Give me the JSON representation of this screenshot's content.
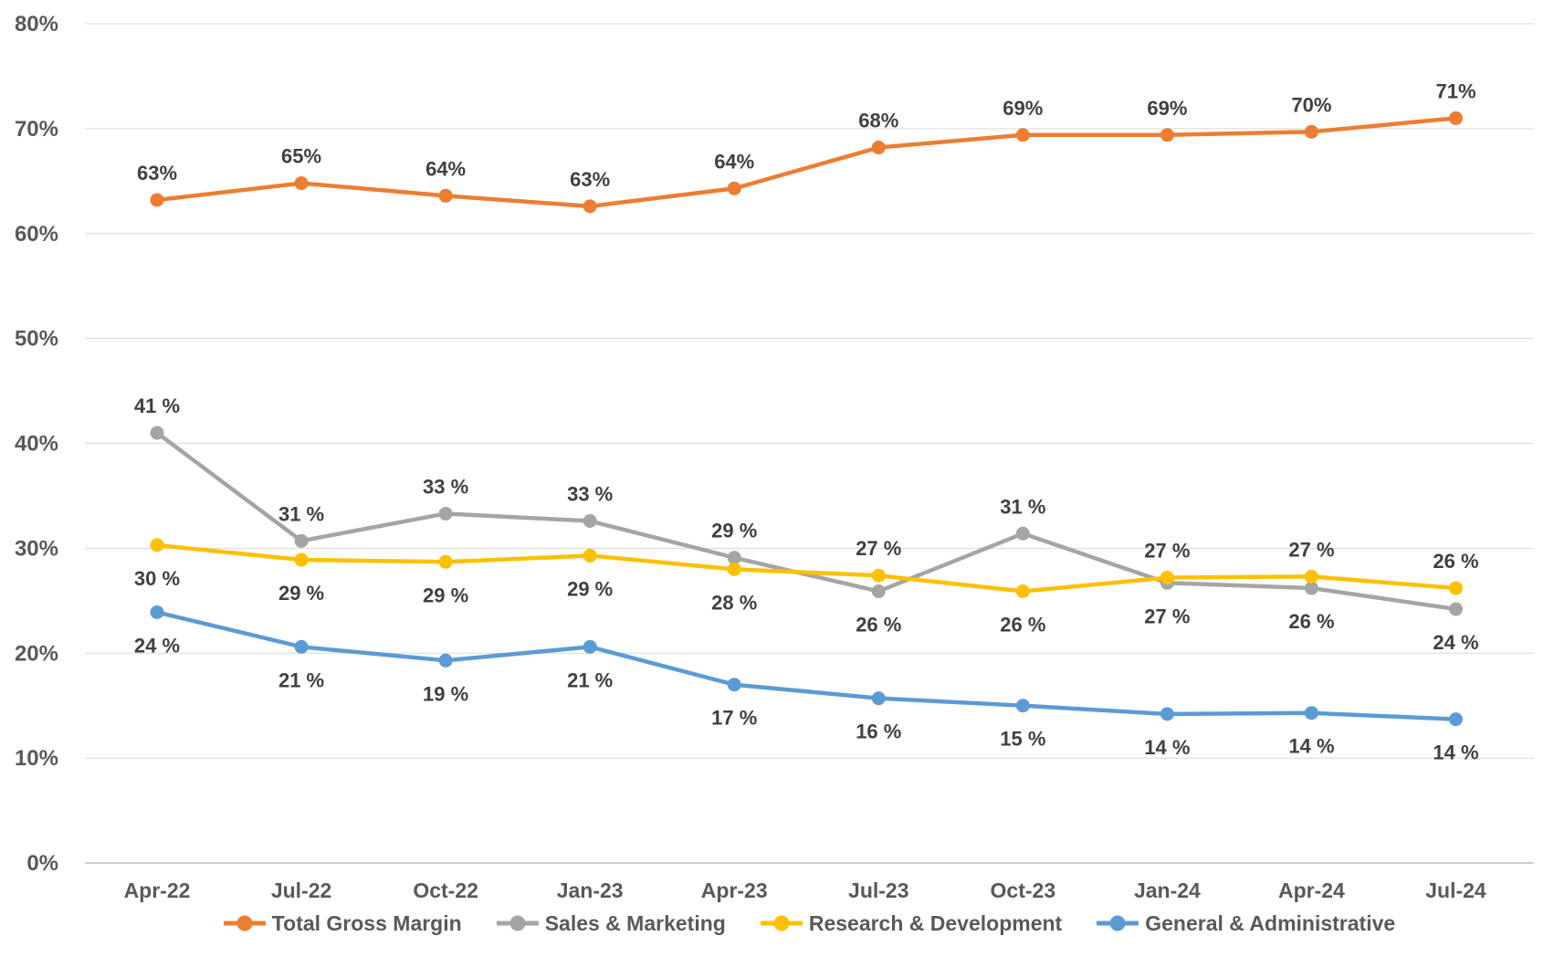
{
  "chart_data": {
    "type": "line",
    "title": "",
    "x_categories": [
      "Apr-22",
      "Jul-22",
      "Oct-22",
      "Jan-23",
      "Apr-23",
      "Jul-23",
      "Oct-23",
      "Jan-24",
      "Apr-24",
      "Jul-24"
    ],
    "y_axis": {
      "min": 0,
      "max": 80,
      "step": 10,
      "tick_labels": [
        "0%",
        "10%",
        "20%",
        "30%",
        "40%",
        "50%",
        "60%",
        "70%",
        "80%"
      ]
    },
    "grid": true,
    "legend_position": "bottom",
    "colors": {
      "total_gross_margin": "#ED7D31",
      "sales_marketing": "#A5A5A5",
      "research_development": "#FFC000",
      "general_administrative": "#5B9BD5",
      "gridline": "#D9D9D9",
      "axis_text": "#595959",
      "data_label_text": "#404040"
    },
    "series": [
      {
        "name": "Total Gross Margin",
        "color": "#ED7D31",
        "values": [
          63,
          65,
          64,
          63,
          64,
          68,
          69,
          69,
          70,
          71
        ],
        "labels": [
          "63%",
          "65%",
          "64%",
          "63%",
          "64%",
          "68%",
          "69%",
          "69%",
          "70%",
          "71%"
        ],
        "plot_values": [
          63.2,
          64.8,
          63.6,
          62.6,
          64.3,
          68.2,
          69.4,
          69.4,
          69.7,
          71.0
        ],
        "label_side": [
          "above",
          "above",
          "above",
          "above",
          "above",
          "above",
          "above",
          "above",
          "above",
          "above"
        ]
      },
      {
        "name": "Sales & Marketing",
        "color": "#A5A5A5",
        "values": [
          41,
          31,
          33,
          33,
          29,
          26,
          31,
          27,
          26,
          24
        ],
        "labels": [
          "41 %",
          "31 %",
          "33 %",
          "33 %",
          "29 %",
          "26 %",
          "31 %",
          "27 %",
          "26 %",
          "24 %"
        ],
        "plot_values": [
          41.0,
          30.7,
          33.3,
          32.6,
          29.1,
          25.9,
          31.4,
          26.7,
          26.2,
          24.2
        ],
        "label_side": [
          "above",
          "above",
          "above",
          "above",
          "above",
          "below",
          "above",
          "below",
          "below",
          "below"
        ]
      },
      {
        "name": "Research & Development",
        "color": "#FFC000",
        "values": [
          30,
          29,
          29,
          29,
          28,
          27,
          26,
          27,
          27,
          26
        ],
        "labels": [
          "30 %",
          "29 %",
          "29 %",
          "29 %",
          "28 %",
          "27 %",
          "26 %",
          "27 %",
          "27 %",
          "26 %"
        ],
        "plot_values": [
          30.3,
          28.9,
          28.7,
          29.3,
          28.0,
          27.4,
          25.9,
          27.2,
          27.3,
          26.2
        ],
        "label_side": [
          "below",
          "below",
          "below",
          "below",
          "below",
          "above",
          "below",
          "above",
          "above",
          "above"
        ]
      },
      {
        "name": "General & Administrative",
        "color": "#5B9BD5",
        "values": [
          24,
          21,
          19,
          21,
          17,
          16,
          15,
          14,
          14,
          14
        ],
        "labels": [
          "24 %",
          "21 %",
          "19 %",
          "21 %",
          "17 %",
          "16 %",
          "15 %",
          "14 %",
          "14 %",
          "14 %"
        ],
        "plot_values": [
          23.9,
          20.6,
          19.3,
          20.6,
          17.0,
          15.7,
          15.0,
          14.2,
          14.3,
          13.7
        ],
        "label_side": [
          "below",
          "below",
          "below",
          "below",
          "below",
          "below",
          "below",
          "below",
          "below",
          "below"
        ]
      }
    ]
  }
}
